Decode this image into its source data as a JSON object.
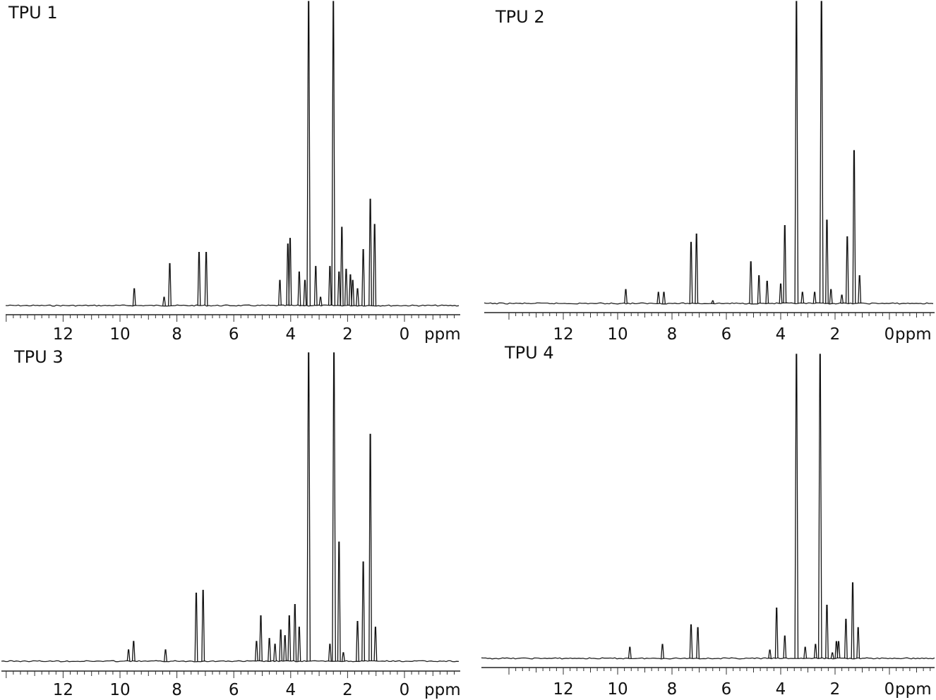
{
  "chart_data": [
    {
      "type": "line",
      "title": "TPU 1",
      "xunit": "ppm",
      "xlim": [
        14,
        -2
      ],
      "xticks": [
        12,
        10,
        8,
        6,
        4,
        2,
        0
      ],
      "ylim": [
        0,
        1
      ],
      "peaks": [
        {
          "x": 9.5,
          "y": 0.06
        },
        {
          "x": 8.45,
          "y": 0.03
        },
        {
          "x": 8.25,
          "y": 0.15
        },
        {
          "x": 7.22,
          "y": 0.19
        },
        {
          "x": 6.97,
          "y": 0.19
        },
        {
          "x": 4.38,
          "y": 0.09
        },
        {
          "x": 4.1,
          "y": 0.22
        },
        {
          "x": 4.02,
          "y": 0.24
        },
        {
          "x": 3.7,
          "y": 0.12
        },
        {
          "x": 3.5,
          "y": 0.09
        },
        {
          "x": 3.37,
          "y": 1.2
        },
        {
          "x": 3.12,
          "y": 0.14
        },
        {
          "x": 2.95,
          "y": 0.03
        },
        {
          "x": 2.62,
          "y": 0.14
        },
        {
          "x": 2.5,
          "y": 1.2
        },
        {
          "x": 2.3,
          "y": 0.12
        },
        {
          "x": 2.2,
          "y": 0.28
        },
        {
          "x": 2.05,
          "y": 0.13
        },
        {
          "x": 1.9,
          "y": 0.11
        },
        {
          "x": 1.82,
          "y": 0.09
        },
        {
          "x": 1.65,
          "y": 0.06
        },
        {
          "x": 1.45,
          "y": 0.2
        },
        {
          "x": 1.2,
          "y": 0.38
        },
        {
          "x": 1.05,
          "y": 0.29
        }
      ]
    },
    {
      "type": "line",
      "title": "TPU 2",
      "xunit": "ppm",
      "xlim": [
        14,
        -2
      ],
      "xticks": [
        12,
        10,
        8,
        6,
        4,
        2,
        0
      ],
      "ylim": [
        0,
        1
      ],
      "peaks": [
        {
          "x": 9.7,
          "y": 0.05
        },
        {
          "x": 8.5,
          "y": 0.04
        },
        {
          "x": 8.3,
          "y": 0.04
        },
        {
          "x": 7.3,
          "y": 0.22
        },
        {
          "x": 7.1,
          "y": 0.25
        },
        {
          "x": 6.5,
          "y": 0.01
        },
        {
          "x": 5.1,
          "y": 0.15
        },
        {
          "x": 4.8,
          "y": 0.1
        },
        {
          "x": 4.5,
          "y": 0.08
        },
        {
          "x": 4.0,
          "y": 0.07
        },
        {
          "x": 3.85,
          "y": 0.28
        },
        {
          "x": 3.42,
          "y": 1.2
        },
        {
          "x": 3.2,
          "y": 0.04
        },
        {
          "x": 2.75,
          "y": 0.04
        },
        {
          "x": 2.5,
          "y": 1.2
        },
        {
          "x": 2.3,
          "y": 0.3
        },
        {
          "x": 2.15,
          "y": 0.05
        },
        {
          "x": 1.75,
          "y": 0.03
        },
        {
          "x": 1.55,
          "y": 0.24
        },
        {
          "x": 1.3,
          "y": 0.55
        },
        {
          "x": 1.1,
          "y": 0.1
        }
      ]
    },
    {
      "type": "line",
      "title": "TPU 3",
      "xunit": "ppm",
      "xlim": [
        14,
        -2
      ],
      "xticks": [
        12,
        10,
        8,
        6,
        4,
        2,
        0
      ],
      "ylim": [
        0,
        1
      ],
      "peaks": [
        {
          "x": 9.7,
          "y": 0.04
        },
        {
          "x": 9.52,
          "y": 0.07
        },
        {
          "x": 8.4,
          "y": 0.04
        },
        {
          "x": 7.32,
          "y": 0.24
        },
        {
          "x": 7.08,
          "y": 0.25
        },
        {
          "x": 5.2,
          "y": 0.07
        },
        {
          "x": 5.05,
          "y": 0.16
        },
        {
          "x": 4.75,
          "y": 0.08
        },
        {
          "x": 4.55,
          "y": 0.06
        },
        {
          "x": 4.35,
          "y": 0.11
        },
        {
          "x": 4.2,
          "y": 0.09
        },
        {
          "x": 4.05,
          "y": 0.16
        },
        {
          "x": 3.85,
          "y": 0.2
        },
        {
          "x": 3.7,
          "y": 0.12
        },
        {
          "x": 3.37,
          "y": 1.2
        },
        {
          "x": 2.62,
          "y": 0.06
        },
        {
          "x": 2.48,
          "y": 1.2
        },
        {
          "x": 2.3,
          "y": 0.42
        },
        {
          "x": 2.15,
          "y": 0.03
        },
        {
          "x": 1.65,
          "y": 0.14
        },
        {
          "x": 1.45,
          "y": 0.35
        },
        {
          "x": 1.2,
          "y": 0.8
        },
        {
          "x": 1.02,
          "y": 0.12
        }
      ]
    },
    {
      "type": "line",
      "title": "TPU 4",
      "xunit": "ppm",
      "xlim": [
        14,
        -2
      ],
      "xticks": [
        12,
        10,
        8,
        6,
        4,
        2,
        0
      ],
      "ylim": [
        0,
        1
      ],
      "peaks": [
        {
          "x": 9.55,
          "y": 0.04
        },
        {
          "x": 8.35,
          "y": 0.05
        },
        {
          "x": 7.3,
          "y": 0.12
        },
        {
          "x": 7.05,
          "y": 0.11
        },
        {
          "x": 4.4,
          "y": 0.03
        },
        {
          "x": 4.15,
          "y": 0.18
        },
        {
          "x": 3.85,
          "y": 0.08
        },
        {
          "x": 3.42,
          "y": 1.2
        },
        {
          "x": 3.1,
          "y": 0.04
        },
        {
          "x": 2.72,
          "y": 0.05
        },
        {
          "x": 2.55,
          "y": 1.2
        },
        {
          "x": 2.3,
          "y": 0.19
        },
        {
          "x": 2.1,
          "y": 0.02
        },
        {
          "x": 1.95,
          "y": 0.06
        },
        {
          "x": 1.87,
          "y": 0.06
        },
        {
          "x": 1.6,
          "y": 0.14
        },
        {
          "x": 1.35,
          "y": 0.27
        },
        {
          "x": 1.15,
          "y": 0.11
        }
      ]
    }
  ]
}
